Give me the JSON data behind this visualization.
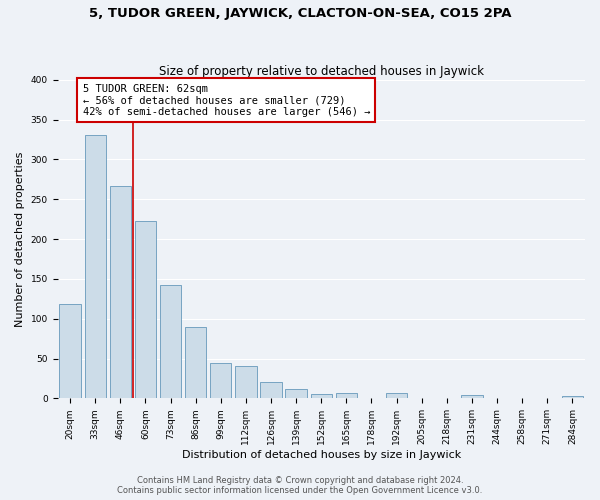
{
  "title": "5, TUDOR GREEN, JAYWICK, CLACTON-ON-SEA, CO15 2PA",
  "subtitle": "Size of property relative to detached houses in Jaywick",
  "xlabel": "Distribution of detached houses by size in Jaywick",
  "ylabel": "Number of detached properties",
  "footer_line1": "Contains HM Land Registry data © Crown copyright and database right 2024.",
  "footer_line2": "Contains public sector information licensed under the Open Government Licence v3.0.",
  "bar_labels": [
    "20sqm",
    "33sqm",
    "46sqm",
    "60sqm",
    "73sqm",
    "86sqm",
    "99sqm",
    "112sqm",
    "126sqm",
    "139sqm",
    "152sqm",
    "165sqm",
    "178sqm",
    "192sqm",
    "205sqm",
    "218sqm",
    "231sqm",
    "244sqm",
    "258sqm",
    "271sqm",
    "284sqm"
  ],
  "bar_values": [
    118,
    330,
    267,
    222,
    142,
    90,
    44,
    40,
    20,
    12,
    6,
    7,
    0,
    7,
    0,
    0,
    4,
    0,
    0,
    0,
    3
  ],
  "bar_color": "#ccdce8",
  "bar_edge_color": "#6699bb",
  "annotation_box_text": "5 TUDOR GREEN: 62sqm\n← 56% of detached houses are smaller (729)\n42% of semi-detached houses are larger (546) →",
  "annotation_box_color": "#ffffff",
  "annotation_box_edge_color": "#cc0000",
  "vline_x": 2.5,
  "vline_color": "#cc0000",
  "ylim": [
    0,
    400
  ],
  "yticks": [
    0,
    50,
    100,
    150,
    200,
    250,
    300,
    350,
    400
  ],
  "bg_color": "#eef2f7",
  "grid_color": "#ffffff",
  "title_fontsize": 9.5,
  "subtitle_fontsize": 8.5,
  "axis_label_fontsize": 8,
  "tick_fontsize": 6.5,
  "annotation_fontsize": 7.5,
  "footer_fontsize": 6
}
